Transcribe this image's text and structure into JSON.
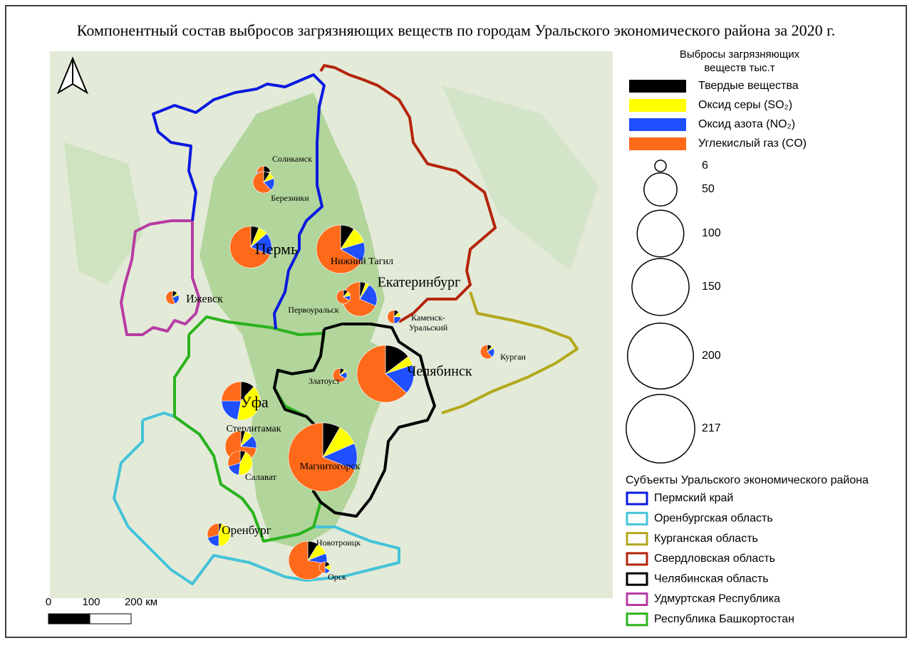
{
  "title": "Компонентный состав выбросов загрязняющих веществ по городам Уральского экономического района за 2020 г.",
  "legend": {
    "title": [
      "Выбросы загрязняющих",
      "веществ тыс.т"
    ],
    "components": [
      {
        "name": "Твердые вещества",
        "color": "#000000"
      },
      {
        "name": "Оксид серы (SO₂)",
        "color": "#ffff00"
      },
      {
        "name": "Оксид азота (NO₂)",
        "color": "#1f4fff"
      },
      {
        "name": "Углекислый газ (CO)",
        "color": "#ff6a1a"
      }
    ],
    "sizes": [
      6,
      50,
      100,
      150,
      200,
      217
    ],
    "regions_title": "Субъекты Уральского экономического района",
    "regions": [
      {
        "name": "Пермский край",
        "color": "#0a1adf"
      },
      {
        "name": "Оренбургская область",
        "color": "#45c3d8"
      },
      {
        "name": "Курганская область",
        "color": "#b3a81c"
      },
      {
        "name": "Свердловская область",
        "color": "#b4240c"
      },
      {
        "name": "Челябинская область",
        "color": "#000000"
      },
      {
        "name": "Удмуртская Республика",
        "color": "#b73ca4"
      },
      {
        "name": "Республика Башкортостан",
        "color": "#2bb31c"
      }
    ]
  },
  "scale_bar": {
    "labels": [
      "0",
      "100",
      "200 км"
    ]
  },
  "cities": [
    {
      "name": "Соликамск",
      "values": [
        2,
        2,
        3,
        2
      ]
    },
    {
      "name": "Березники",
      "values": [
        2,
        2,
        4,
        13
      ]
    },
    {
      "name": "Пермь",
      "values": [
        5,
        6,
        14,
        55
      ]
    },
    {
      "name": "Нижний Тагил",
      "values": [
        10,
        12,
        14,
        72
      ]
    },
    {
      "name": "Екатеринбург",
      "values": [
        3,
        2,
        12,
        37
      ]
    },
    {
      "name": "Первоуральск",
      "values": [
        1,
        1,
        1,
        6
      ]
    },
    {
      "name": "Ижевск",
      "values": [
        1,
        0.5,
        2,
        4.5
      ]
    },
    {
      "name_lines": [
        "Каменск-",
        "Уральский"
      ],
      "values": [
        1,
        1,
        2,
        4
      ]
    },
    {
      "name": "Златоуст",
      "values": [
        1,
        0.5,
        1.5,
        6
      ]
    },
    {
      "name": "Челябинск",
      "values": [
        22,
        8,
        25,
        95
      ]
    },
    {
      "name": "Курган",
      "values": [
        1,
        0.5,
        2,
        5.5
      ]
    },
    {
      "name": "Уфа",
      "values": [
        8,
        28,
        15,
        17
      ]
    },
    {
      "name": "Стерлитамак",
      "values": [
        2,
        4,
        6,
        33
      ]
    },
    {
      "name": "Салават",
      "values": [
        2,
        12,
        5,
        8
      ]
    },
    {
      "name": "Магнитогорск",
      "values": [
        18,
        22,
        27,
        150
      ]
    },
    {
      "name": "Оренбург",
      "values": [
        1,
        11,
        5,
        7
      ]
    },
    {
      "name": "Новотроицк",
      "values": [
        6,
        7,
        6,
        49
      ]
    },
    {
      "name": "Орск",
      "values": [
        1,
        1,
        1,
        3
      ]
    }
  ]
}
